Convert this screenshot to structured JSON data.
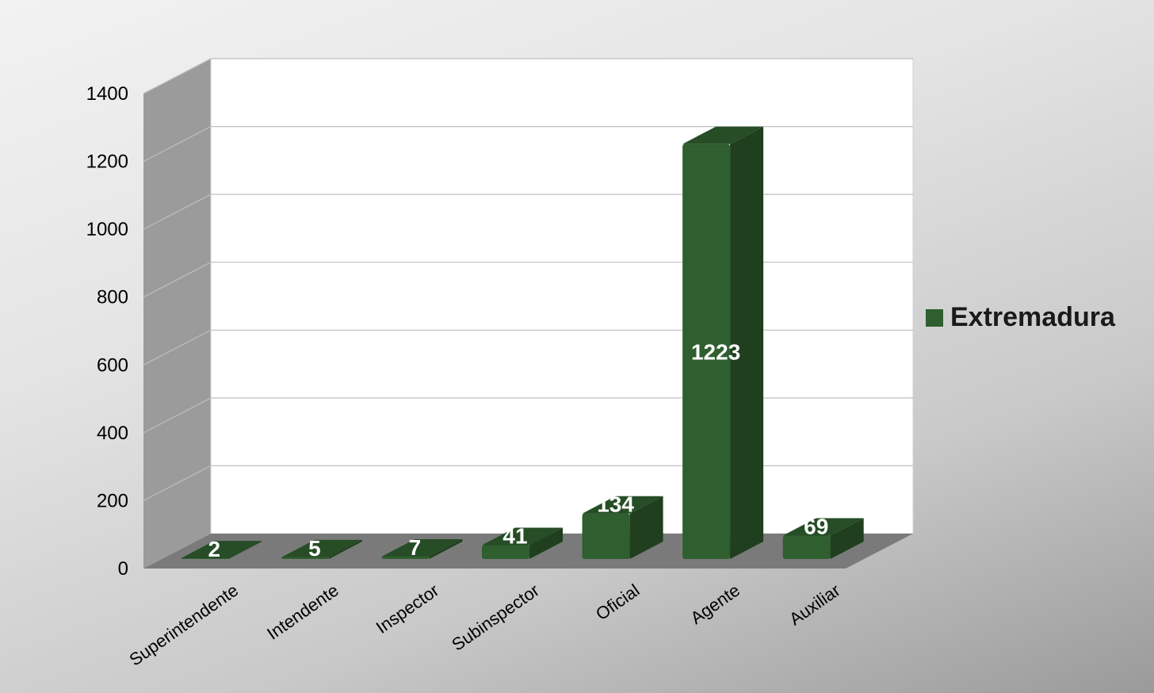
{
  "chart_data": {
    "type": "bar",
    "categories": [
      "Superintendente",
      "Intendente",
      "Inspector",
      "Subinspector",
      "Oficial",
      "Agente",
      "Auxiliar"
    ],
    "series": [
      {
        "name": "Extremadura",
        "values": [
          2,
          5,
          7,
          41,
          134,
          1223,
          69
        ]
      }
    ],
    "data_labels": [
      "2",
      "5",
      "7",
      "41",
      "134",
      "1223",
      "69"
    ],
    "y_ticks": [
      "0",
      "200",
      "400",
      "600",
      "800",
      "1000",
      "1200",
      "1400"
    ],
    "ylim": [
      0,
      1400
    ],
    "grid": true,
    "style": "3d-column",
    "legend_position": "right",
    "colors": {
      "bar_front": "#2f5e2f",
      "bar_side": "#1f3f1f",
      "bar_top": "#264d26",
      "wall_back": "#ffffff",
      "wall_side": "#9b9b9b",
      "floor": "#7a7a7a",
      "gridline": "#bfbfbf"
    }
  },
  "legend": {
    "label": "Extremadura"
  }
}
